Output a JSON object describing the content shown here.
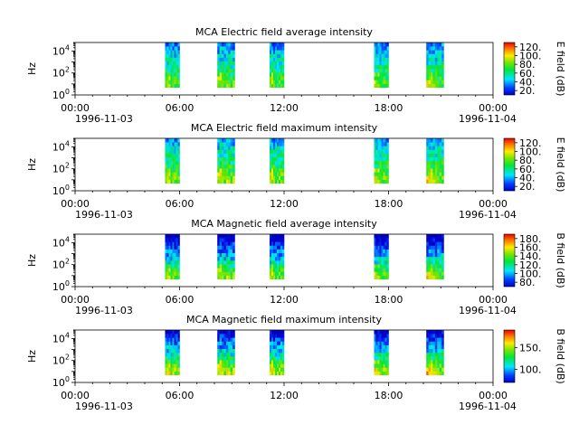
{
  "figure": {
    "panels": [
      {
        "title": "MCA  Electric field average intensity",
        "ylabel": "Hz",
        "cbar_label": "E field (dB)",
        "cbar_ticks": [
          "20.",
          "40.",
          "60.",
          "80.",
          "100.",
          "120."
        ],
        "x_tick_labels": [
          "00:00",
          "06:00",
          "12:00",
          "18:00",
          "00:00"
        ],
        "date_left": "1996-11-03",
        "date_right": "1996-11-04"
      },
      {
        "title": "MCA  Electric field maximum intensity",
        "ylabel": "Hz",
        "cbar_label": "E field (dB)",
        "cbar_ticks": [
          "20.",
          "40.",
          "60.",
          "80.",
          "100.",
          "120."
        ],
        "x_tick_labels": [
          "00:00",
          "06:00",
          "12:00",
          "18:00",
          "00:00"
        ],
        "date_left": "1996-11-03",
        "date_right": "1996-11-04"
      },
      {
        "title": "MCA  Magnetic field average intensity",
        "ylabel": "Hz",
        "cbar_label": "B field (dB)",
        "cbar_ticks": [
          "80.",
          "100.",
          "120.",
          "140.",
          "160.",
          "180."
        ],
        "x_tick_labels": [
          "00:00",
          "06:00",
          "12:00",
          "18:00",
          "00:00"
        ],
        "date_left": "1996-11-03",
        "date_right": "1996-11-04"
      },
      {
        "title": "MCA  Magnetic field maximum intensity",
        "ylabel": "Hz",
        "cbar_label": "B field (dB)",
        "cbar_ticks": [
          "100.",
          "150."
        ],
        "x_tick_labels": [
          "00:00",
          "06:00",
          "12:00",
          "18:00",
          "00:00"
        ],
        "date_left": "1996-11-03",
        "date_right": "1996-11-04"
      }
    ]
  },
  "chart_data": [
    {
      "type": "heatmap",
      "title": "MCA  Electric field average intensity",
      "xlabel": "",
      "ylabel": "Hz",
      "x_start": "1996-11-03 00:00",
      "x_end": "1996-11-04 00:00",
      "x_ticks": [
        "00:00",
        "06:00",
        "12:00",
        "18:00",
        "00:00"
      ],
      "y_scale": "log",
      "y_ticks": [
        1,
        100,
        10000
      ],
      "y_tick_labels": [
        "10^0",
        "10^2",
        "10^4"
      ],
      "ylim": [
        1,
        60000
      ],
      "colorbar": {
        "label": "E field (dB)",
        "range": [
          10,
          130
        ],
        "ticks": [
          20,
          40,
          60,
          80,
          100,
          120
        ],
        "colormap": "rainbow"
      },
      "data_segments": [
        {
          "start": "05:10",
          "end": "06:00"
        },
        {
          "start": "08:10",
          "end": "09:10"
        },
        {
          "start": "11:10",
          "end": "12:00"
        },
        {
          "start": "17:10",
          "end": "18:00"
        },
        {
          "start": "20:10",
          "end": "21:10"
        }
      ],
      "grid": false
    },
    {
      "type": "heatmap",
      "title": "MCA  Electric field maximum intensity",
      "xlabel": "",
      "ylabel": "Hz",
      "x_start": "1996-11-03 00:00",
      "x_end": "1996-11-04 00:00",
      "x_ticks": [
        "00:00",
        "06:00",
        "12:00",
        "18:00",
        "00:00"
      ],
      "y_scale": "log",
      "y_ticks": [
        1,
        100,
        10000
      ],
      "y_tick_labels": [
        "10^0",
        "10^2",
        "10^4"
      ],
      "ylim": [
        1,
        60000
      ],
      "colorbar": {
        "label": "E field (dB)",
        "range": [
          10,
          130
        ],
        "ticks": [
          20,
          40,
          60,
          80,
          100,
          120
        ],
        "colormap": "rainbow"
      },
      "data_segments": [
        {
          "start": "05:10",
          "end": "06:00"
        },
        {
          "start": "08:10",
          "end": "09:10"
        },
        {
          "start": "11:10",
          "end": "12:00"
        },
        {
          "start": "17:10",
          "end": "18:00"
        },
        {
          "start": "20:10",
          "end": "21:10"
        }
      ],
      "grid": false
    },
    {
      "type": "heatmap",
      "title": "MCA  Magnetic field average intensity",
      "xlabel": "",
      "ylabel": "Hz",
      "x_start": "1996-11-03 00:00",
      "x_end": "1996-11-04 00:00",
      "x_ticks": [
        "00:00",
        "06:00",
        "12:00",
        "18:00",
        "00:00"
      ],
      "y_scale": "log",
      "y_ticks": [
        1,
        100,
        10000
      ],
      "y_tick_labels": [
        "10^0",
        "10^2",
        "10^4"
      ],
      "ylim": [
        1,
        60000
      ],
      "colorbar": {
        "label": "B field (dB)",
        "range": [
          70,
          190
        ],
        "ticks": [
          80,
          100,
          120,
          140,
          160,
          180
        ],
        "colormap": "rainbow"
      },
      "data_segments": [
        {
          "start": "05:10",
          "end": "06:00"
        },
        {
          "start": "08:10",
          "end": "09:10"
        },
        {
          "start": "11:10",
          "end": "12:00"
        },
        {
          "start": "17:10",
          "end": "18:00"
        },
        {
          "start": "20:10",
          "end": "21:10"
        }
      ],
      "grid": false
    },
    {
      "type": "heatmap",
      "title": "MCA  Magnetic field maximum intensity",
      "xlabel": "",
      "ylabel": "Hz",
      "x_start": "1996-11-03 00:00",
      "x_end": "1996-11-04 00:00",
      "x_ticks": [
        "00:00",
        "06:00",
        "12:00",
        "18:00",
        "00:00"
      ],
      "y_scale": "log",
      "y_ticks": [
        1,
        100,
        10000
      ],
      "y_tick_labels": [
        "10^0",
        "10^2",
        "10^4"
      ],
      "ylim": [
        1,
        60000
      ],
      "colorbar": {
        "label": "B field (dB)",
        "range": [
          70,
          190
        ],
        "ticks": [
          100,
          150
        ],
        "colormap": "rainbow"
      },
      "data_segments": [
        {
          "start": "05:10",
          "end": "06:00"
        },
        {
          "start": "08:10",
          "end": "09:10"
        },
        {
          "start": "11:10",
          "end": "12:00"
        },
        {
          "start": "17:10",
          "end": "18:00"
        },
        {
          "start": "20:10",
          "end": "21:10"
        }
      ],
      "grid": false
    }
  ]
}
